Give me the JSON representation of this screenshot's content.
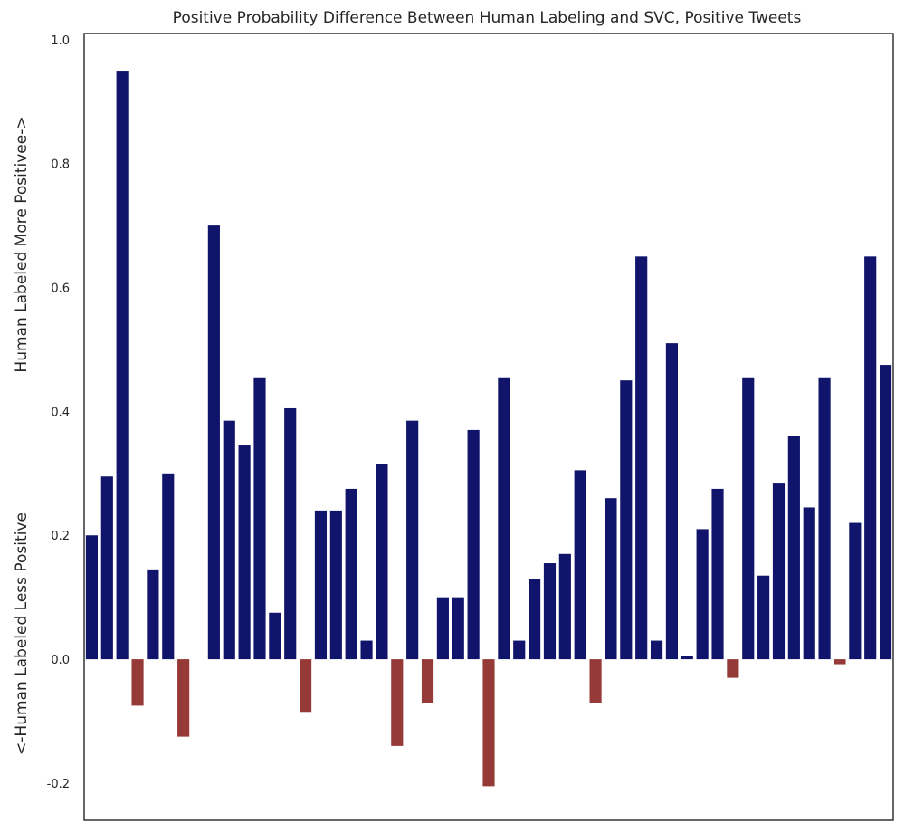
{
  "chart_data": {
    "type": "bar",
    "title": "Positive Probability Difference Between Human Labeling and SVC, Positive Tweets",
    "ylabel": "<-Human Labeled Less Positive        Human Labeled More Positivee->",
    "ylabel_lower": "<-Human Labeled Less Positive",
    "ylabel_upper": "Human Labeled More Positivee->",
    "xlabel": "",
    "ylim": [
      -0.26,
      1.01
    ],
    "yticks": [
      -0.2,
      0.0,
      0.2,
      0.4,
      0.6,
      0.8,
      1.0
    ],
    "ytick_labels": [
      "-0.2",
      "0.0",
      "0.2",
      "0.4",
      "0.6",
      "0.8",
      "1.0"
    ],
    "x_ticks_shown": false,
    "grid": false,
    "colors": {
      "positive": "#10146a",
      "negative": "#963a37",
      "axis": "#262626"
    },
    "values": [
      0.2,
      0.295,
      0.95,
      -0.075,
      0.145,
      0.3,
      -0.125,
      0.0,
      0.7,
      0.385,
      0.345,
      0.455,
      0.075,
      0.405,
      -0.085,
      0.24,
      0.24,
      0.275,
      0.03,
      0.315,
      -0.14,
      0.385,
      -0.07,
      0.1,
      0.1,
      0.37,
      -0.205,
      0.455,
      0.03,
      0.13,
      0.155,
      0.17,
      0.305,
      -0.07,
      0.26,
      0.45,
      0.65,
      0.03,
      0.51,
      0.005,
      0.21,
      0.275,
      -0.03,
      0.455,
      0.135,
      0.285,
      0.36,
      0.245,
      0.455,
      -0.008,
      0.22,
      0.65,
      0.475
    ]
  }
}
